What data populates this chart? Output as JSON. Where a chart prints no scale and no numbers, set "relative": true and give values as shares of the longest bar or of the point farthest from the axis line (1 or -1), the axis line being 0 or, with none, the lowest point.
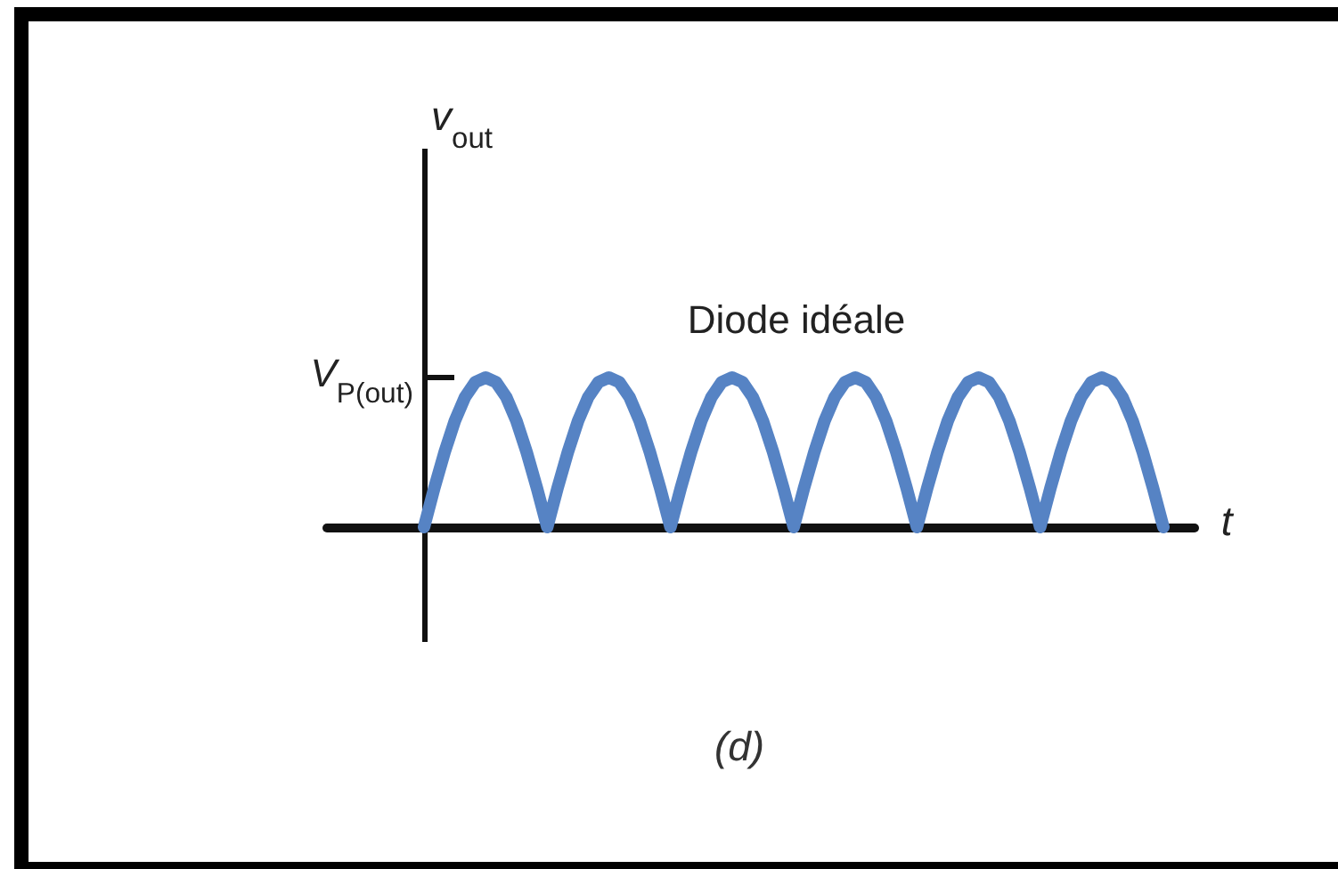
{
  "chart_data": {
    "type": "line",
    "relative": true,
    "xlabel": "t",
    "categories": [
      null,
      null,
      null,
      null,
      null,
      null,
      null,
      null,
      null,
      null,
      null,
      null,
      null,
      null,
      null,
      null,
      null,
      null,
      null,
      null,
      null,
      null,
      null,
      null,
      null,
      null,
      null,
      null,
      null,
      null,
      null,
      null,
      null,
      null,
      null,
      null,
      null,
      null,
      null,
      null,
      null,
      null,
      null,
      null,
      null,
      null,
      null,
      null,
      null,
      null,
      null,
      null,
      null,
      null,
      null,
      null,
      null,
      null,
      null,
      null,
      null,
      null,
      null,
      null,
      null,
      null,
      null,
      null,
      null,
      null,
      null,
      null,
      null
    ],
    "series": [
      {
        "name": "Diode idéale",
        "color": "#5683c4",
        "values": [
          0,
          0.26,
          0.5,
          0.71,
          0.87,
          0.97,
          1,
          0.97,
          0.87,
          0.71,
          0.5,
          0.26,
          0,
          0.26,
          0.5,
          0.71,
          0.87,
          0.97,
          1,
          0.97,
          0.87,
          0.71,
          0.5,
          0.26,
          0,
          0.26,
          0.5,
          0.71,
          0.87,
          0.97,
          1,
          0.97,
          0.87,
          0.71,
          0.5,
          0.26,
          0,
          0.26,
          0.5,
          0.71,
          0.87,
          0.97,
          1,
          0.97,
          0.87,
          0.71,
          0.5,
          0.26,
          0,
          0.26,
          0.5,
          0.71,
          0.87,
          0.97,
          1,
          0.97,
          0.87,
          0.71,
          0.5,
          0.26,
          0,
          0.26,
          0.5,
          0.71,
          0.87,
          0.97,
          1,
          0.97,
          0.87,
          0.71,
          0.5,
          0.26,
          0
        ]
      }
    ],
    "annotations": [
      "v$_{out}$",
      "V$_{P(out)}$",
      "(d)"
    ]
  }
}
